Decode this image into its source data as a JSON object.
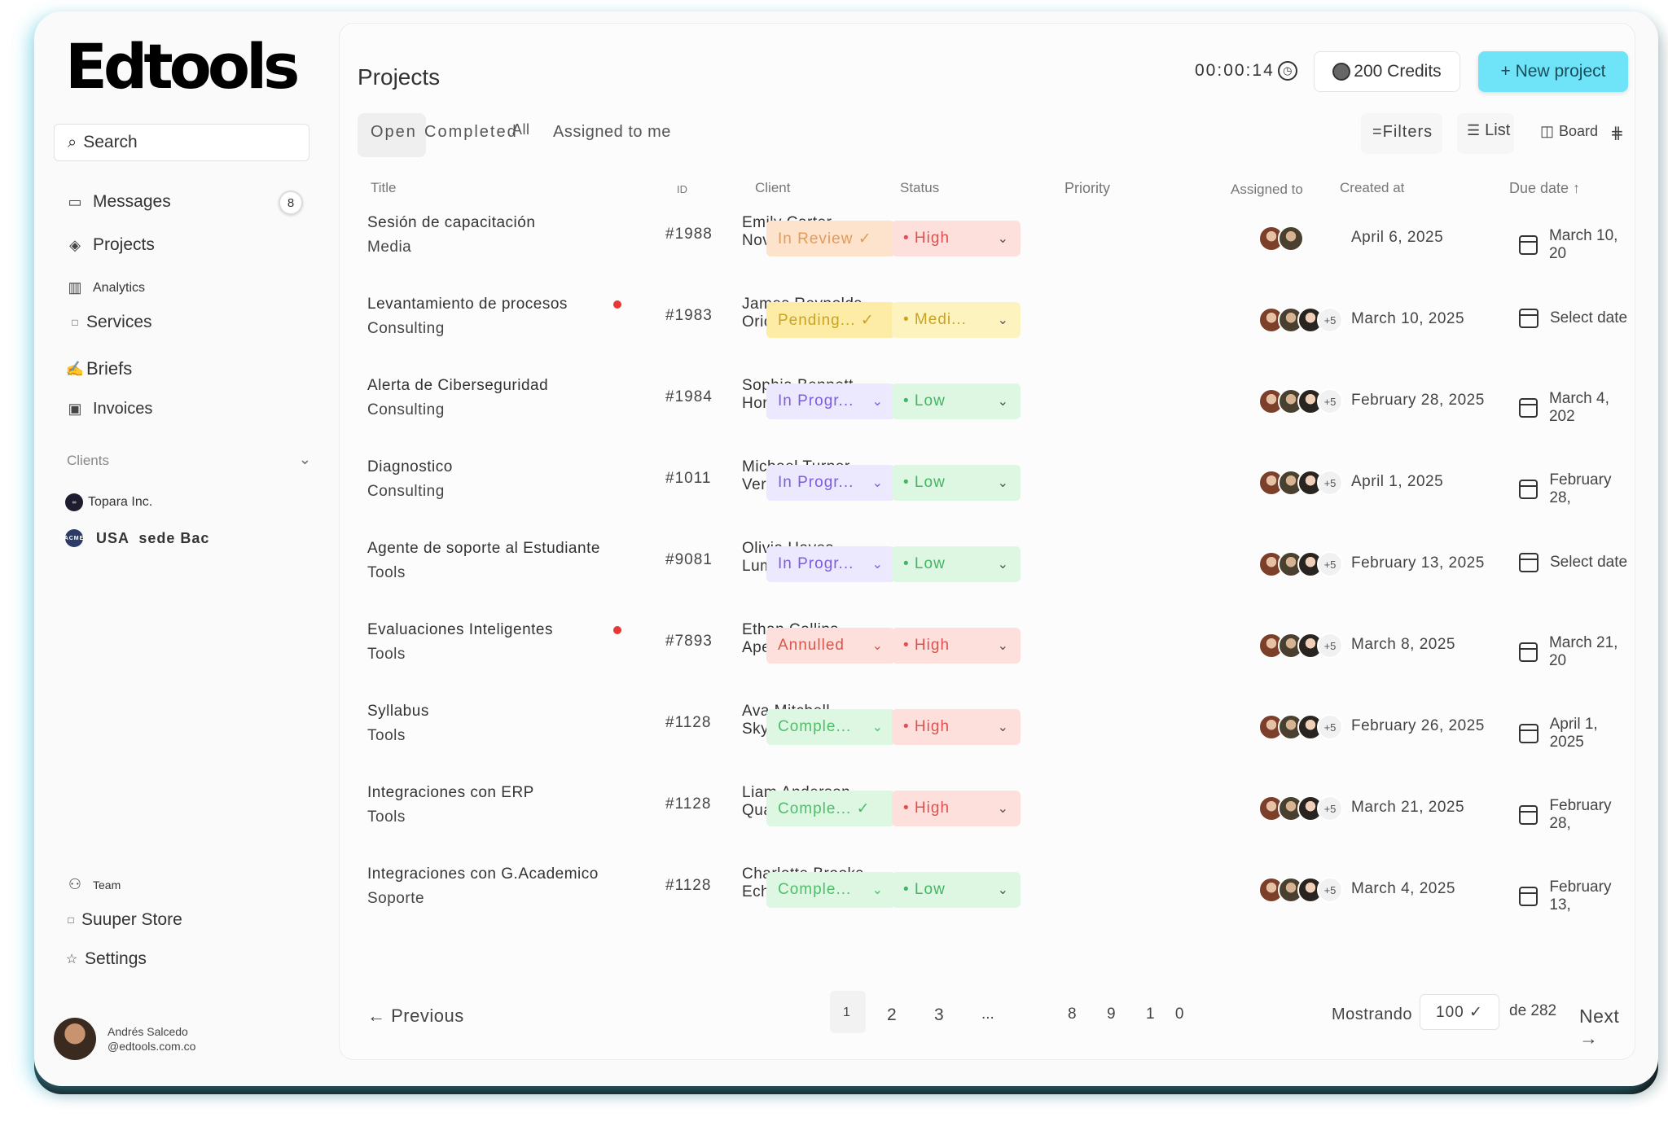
{
  "app": {
    "logo": "Edtools"
  },
  "sidebar": {
    "search_label": "Search",
    "items": [
      {
        "label": "Messages",
        "icon": "inbox-icon",
        "badge": "8"
      },
      {
        "label": "Projects",
        "icon": "layers-icon"
      },
      {
        "label": "Analytics",
        "icon": "chart-icon"
      },
      {
        "label": "Services",
        "icon": "square-icon"
      },
      {
        "label": "Briefs",
        "icon": "sign-icon"
      },
      {
        "label": "Invoices",
        "icon": "wallet-icon"
      }
    ],
    "clients_label": "Clients",
    "clients": [
      {
        "label": "Topara Inc."
      },
      {
        "label": "USA  sede Bac",
        "logo_text": "ACME"
      }
    ],
    "bottom_items": [
      {
        "label": "Team",
        "icon": "team-icon"
      },
      {
        "label": "Suuper Store",
        "icon": "store-icon"
      },
      {
        "label": "Settings",
        "icon": "star-icon"
      }
    ],
    "profile": {
      "name": "Andrés Salcedo",
      "email": "@edtools.com.co"
    }
  },
  "header": {
    "title": "Projects",
    "timer": "00:00:14",
    "credits": "200 Credits",
    "new_project": "+ New project"
  },
  "tabs": {
    "open": "Open",
    "completed": "Completed",
    "all": "All",
    "assigned": "Assigned to me"
  },
  "toolbar": {
    "filters": "=Filters",
    "list": "List",
    "board": "Board"
  },
  "table": {
    "headers": {
      "title": "Title",
      "id": "ID",
      "client": "Client",
      "status": "Status",
      "priority": "Priority",
      "assigned": "Assigned to",
      "created": "Created at",
      "due": "Due date ↑"
    },
    "rows": [
      {
        "title": "Sesión de capacitación",
        "subtitle": "Media",
        "id": "#1988",
        "client": "Emily Carter",
        "company": "NovaTech",
        "status": "In Review ✓",
        "priority": "• High",
        "more": "",
        "created": "April 6, 2025",
        "due": "March 10, 20",
        "dot": false
      },
      {
        "title": "Levantamiento de procesos",
        "subtitle": "Consulting",
        "id": "#1983",
        "client": "James Reynolds",
        "company": "Orion",
        "status": "Pending... ✓",
        "priority": "• Medi...",
        "more": "+5",
        "created": "March 10, 2025",
        "due": "Select date",
        "dot": true
      },
      {
        "title": "Alerta de Ciberseguridad",
        "subtitle": "Consulting",
        "id": "#1984",
        "client": "Sophia Bennett",
        "company": "Horizon Gbl.",
        "status": "In Progr...",
        "priority": "• Low",
        "more": "+5",
        "created": "February 28, 2025",
        "due": "March 4, 202",
        "dot": false
      },
      {
        "title": "Diagnostico",
        "subtitle": "Consulting",
        "id": "#1011",
        "client": "Michael Turner",
        "company": "Vertex Systems",
        "status": "In Progr...",
        "priority": "• Low",
        "more": "+5",
        "created": "April 1, 2025",
        "due": "February 28,",
        "dot": false
      },
      {
        "title": "Agente de soporte al Estudiante",
        "subtitle": "Tools",
        "id": "#9081",
        "client": "Olivia Hayes",
        "company": "Lumina Health",
        "status": "In Progr...",
        "priority": "• Low",
        "more": "+5",
        "created": "February 13, 2025",
        "due": "Select date",
        "dot": false
      },
      {
        "title": "Evaluaciones Inteligentes",
        "subtitle": "Tools",
        "id": "#7893",
        "client": "Ethan Collins",
        "company": "Apex Financial",
        "status": "Annulled",
        "priority": "• High",
        "more": "+5",
        "created": "March 8, 2025",
        "due": "March 21, 20",
        "dot": true
      },
      {
        "title": "Syllabus",
        "subtitle": "Tools",
        "id": "#1128",
        "client": "Ava Mitchell",
        "company": "SkyBridge Media",
        "status": "Comple...",
        "priority": "• High",
        "more": "+5",
        "created": "February 26, 2025",
        "due": "April 1, 2025",
        "dot": false
      },
      {
        "title": "Integraciones con ERP",
        "subtitle": "Tools",
        "id": "#1128",
        "client": "Liam Anderson",
        "company": "Quantum Log.",
        "status": "Comple... ✓",
        "priority": "• High",
        "more": "+5",
        "created": "March 21, 2025",
        "due": "February 28,",
        "dot": false
      },
      {
        "title": "Integraciones con G.Academico",
        "subtitle": "Soporte",
        "id": "#1128",
        "client": "Charlotte Brooks",
        "company": "EchoWave",
        "status": "Comple...",
        "priority": "• Low",
        "more": "+5",
        "created": "March 4, 2025",
        "due": "February 13,",
        "dot": false
      }
    ]
  },
  "pagination": {
    "previous": "← Previous",
    "pages": [
      "1",
      "2",
      "3",
      "...",
      "8",
      "9",
      "1 0"
    ],
    "showing": "Mostrando",
    "per_page": "100 ✓",
    "of": "de 282",
    "next": "Next →"
  },
  "colors": {
    "accent": "#6fe3f7",
    "review_bg": "#fde3cc",
    "review_fg": "#e29b58",
    "pending_bg": "#fdeca6",
    "pending_fg": "#c9a322",
    "progress_bg": "#ece8fd",
    "progress_fg": "#7c5ce0",
    "annulled_bg": "#fde0dc",
    "annulled_fg": "#d8574a",
    "complete_bg": "#ddf7e2",
    "complete_fg": "#4fbd6a",
    "high_bg": "#fde0dc",
    "high_fg": "#e05050",
    "med_bg": "#fdf3bf",
    "med_fg": "#c9a322",
    "low_bg": "#ddf7e2",
    "low_fg": "#45b563"
  }
}
